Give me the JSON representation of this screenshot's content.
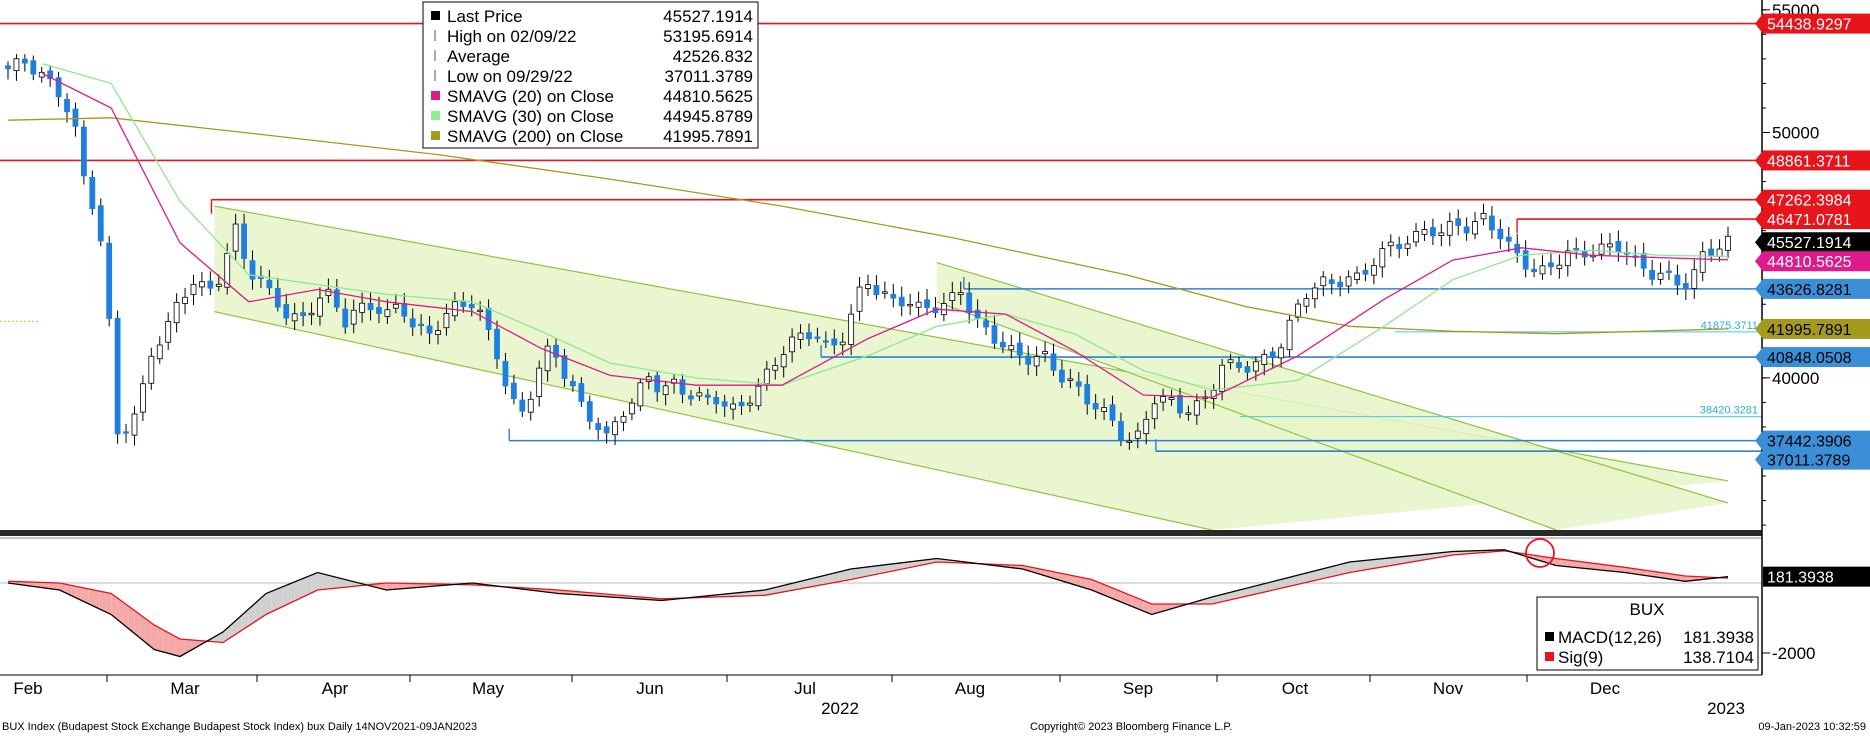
{
  "chart_data": {
    "type": "candlestick",
    "ticker_line": "BUX Index (Budapest Stock Exchange Budapest Stock Index) bux  Daily 14NOV2021-09JAN2023",
    "copyright": "Copyright© 2023 Bloomberg Finance L.P.",
    "timestamp": "09-Jan-2023 10:32:59",
    "x_months": [
      "Feb",
      "Mar",
      "Apr",
      "May",
      "Jun",
      "Jul",
      "Aug",
      "Sep",
      "Oct",
      "Nov",
      "Dec"
    ],
    "x_years": [
      "2022",
      "2023"
    ],
    "price_axis": {
      "ticks": [
        "55000",
        "50000",
        "40000"
      ],
      "range": [
        33800,
        55400
      ]
    },
    "macd_axis": {
      "ticks": [
        "-2000"
      ]
    },
    "legend": [
      {
        "label": "Last Price",
        "value": "45527.1914",
        "marker": "square",
        "color": "#000000"
      },
      {
        "label": "High on 02/09/22",
        "value": "53195.6914",
        "marker": "high",
        "color": "#555555"
      },
      {
        "label": "Average",
        "value": "42526.832",
        "marker": "avg",
        "color": "#555555"
      },
      {
        "label": "Low on 09/29/22",
        "value": "37011.3789",
        "marker": "low",
        "color": "#555555"
      },
      {
        "label": "SMAVG (20)  on Close",
        "value": "44810.5625",
        "marker": "square",
        "color": "#e0198c"
      },
      {
        "label": "SMAVG (30)  on Close",
        "value": "44945.8789",
        "marker": "square",
        "color": "#90ee90"
      },
      {
        "label": "SMAVG (200)  on Close",
        "value": "41995.7891",
        "marker": "square",
        "color": "#a59a1e"
      }
    ],
    "price_tags": [
      {
        "value": 54438.9297,
        "text": "54438.9297",
        "bg": "#e8141c",
        "fg": "#ffffff"
      },
      {
        "value": 48861.3711,
        "text": "48861.3711",
        "bg": "#e8141c",
        "fg": "#ffffff"
      },
      {
        "value": 47262.3984,
        "text": "47262.3984",
        "bg": "#e8141c",
        "fg": "#ffffff"
      },
      {
        "value": 46471.0781,
        "text": "46471.0781",
        "bg": "#e8141c",
        "fg": "#ffffff"
      },
      {
        "value": 45527.1914,
        "text": "45527.1914",
        "bg": "#000000",
        "fg": "#ffffff"
      },
      {
        "value": 44810.5625,
        "text": "44810.5625",
        "bg": "#e0198c",
        "fg": "#ffffff"
      },
      {
        "value": 43626.8281,
        "text": "43626.8281",
        "bg": "#3b8fd9",
        "fg": "#000000"
      },
      {
        "value": 41995.7891,
        "text": "41995.7891",
        "bg": "#a59a1e",
        "fg": "#000000"
      },
      {
        "value": 40848.0508,
        "text": "40848.0508",
        "bg": "#3b8fd9",
        "fg": "#000000"
      },
      {
        "value": 37442.3906,
        "text": "37442.3906",
        "bg": "#3b8fd9",
        "fg": "#000000"
      },
      {
        "value": 37011.3789,
        "text": "37011.3789",
        "bg": "#3b8fd9",
        "fg": "#000000"
      }
    ],
    "fib_labels": [
      {
        "value": 41875.3711,
        "text": "41875.3711"
      },
      {
        "value": 38420.3281,
        "text": "38420.3281"
      }
    ],
    "resistance_lines": [
      {
        "value": 54438.9297,
        "x_start": 0
      },
      {
        "value": 48861.3711,
        "x_start": 0
      },
      {
        "value": 47262.3984,
        "x_start": 0.12
      },
      {
        "value": 46471.0781,
        "x_start": 0.861
      }
    ],
    "support_lines": [
      {
        "value": 43626.8281,
        "x_start": 0.547
      },
      {
        "value": 40848.0508,
        "x_start": 0.466
      },
      {
        "value": 37442.3906,
        "x_start": 0.289
      },
      {
        "value": 37011.3789,
        "x_start": 0.656
      }
    ],
    "macd_legend": {
      "title": "BUX",
      "rows": [
        {
          "label": "MACD(12,26)",
          "value": "181.3938",
          "color": "#000000"
        },
        {
          "label": "Sig(9)",
          "value": "138.7104",
          "color": "#e8141c"
        }
      ],
      "last_tag": "181.3938"
    },
    "series_close": [
      {
        "t": 0.0,
        "v": 52600
      },
      {
        "t": 0.01,
        "v": 52900
      },
      {
        "t": 0.02,
        "v": 52300
      },
      {
        "t": 0.03,
        "v": 51600
      },
      {
        "t": 0.038,
        "v": 50500
      },
      {
        "t": 0.046,
        "v": 47400
      },
      {
        "t": 0.052,
        "v": 46900
      },
      {
        "t": 0.058,
        "v": 42900
      },
      {
        "t": 0.064,
        "v": 37500
      },
      {
        "t": 0.07,
        "v": 38200
      },
      {
        "t": 0.076,
        "v": 38600
      },
      {
        "t": 0.082,
        "v": 40900
      },
      {
        "t": 0.088,
        "v": 41500
      },
      {
        "t": 0.094,
        "v": 42200
      },
      {
        "t": 0.1,
        "v": 43300
      },
      {
        "t": 0.108,
        "v": 43900
      },
      {
        "t": 0.116,
        "v": 43500
      },
      {
        "t": 0.124,
        "v": 44200
      },
      {
        "t": 0.132,
        "v": 46100
      },
      {
        "t": 0.14,
        "v": 44400
      },
      {
        "t": 0.148,
        "v": 43800
      },
      {
        "t": 0.156,
        "v": 43200
      },
      {
        "t": 0.164,
        "v": 42300
      },
      {
        "t": 0.172,
        "v": 42500
      },
      {
        "t": 0.18,
        "v": 43200
      },
      {
        "t": 0.188,
        "v": 43400
      },
      {
        "t": 0.196,
        "v": 42300
      },
      {
        "t": 0.204,
        "v": 42800
      },
      {
        "t": 0.212,
        "v": 43000
      },
      {
        "t": 0.22,
        "v": 42500
      },
      {
        "t": 0.228,
        "v": 43100
      },
      {
        "t": 0.236,
        "v": 42000
      },
      {
        "t": 0.244,
        "v": 41800
      },
      {
        "t": 0.252,
        "v": 42300
      },
      {
        "t": 0.26,
        "v": 42900
      },
      {
        "t": 0.268,
        "v": 43200
      },
      {
        "t": 0.276,
        "v": 42400
      },
      {
        "t": 0.284,
        "v": 41100
      },
      {
        "t": 0.292,
        "v": 39000
      },
      {
        "t": 0.3,
        "v": 38600
      },
      {
        "t": 0.308,
        "v": 40200
      },
      {
        "t": 0.316,
        "v": 41400
      },
      {
        "t": 0.324,
        "v": 40100
      },
      {
        "t": 0.332,
        "v": 39000
      },
      {
        "t": 0.34,
        "v": 38300
      },
      {
        "t": 0.348,
        "v": 37500
      },
      {
        "t": 0.356,
        "v": 38600
      },
      {
        "t": 0.364,
        "v": 39000
      },
      {
        "t": 0.372,
        "v": 40200
      },
      {
        "t": 0.38,
        "v": 39400
      },
      {
        "t": 0.388,
        "v": 39800
      },
      {
        "t": 0.396,
        "v": 39300
      },
      {
        "t": 0.404,
        "v": 39100
      },
      {
        "t": 0.412,
        "v": 39200
      },
      {
        "t": 0.42,
        "v": 38600
      },
      {
        "t": 0.428,
        "v": 39000
      },
      {
        "t": 0.436,
        "v": 39500
      },
      {
        "t": 0.444,
        "v": 40500
      },
      {
        "t": 0.452,
        "v": 41200
      },
      {
        "t": 0.46,
        "v": 41700
      },
      {
        "t": 0.468,
        "v": 41900
      },
      {
        "t": 0.476,
        "v": 41200
      },
      {
        "t": 0.484,
        "v": 41500
      },
      {
        "t": 0.492,
        "v": 42800
      },
      {
        "t": 0.498,
        "v": 44100
      },
      {
        "t": 0.506,
        "v": 43500
      },
      {
        "t": 0.514,
        "v": 43100
      },
      {
        "t": 0.522,
        "v": 43200
      },
      {
        "t": 0.53,
        "v": 42800
      },
      {
        "t": 0.538,
        "v": 42900
      },
      {
        "t": 0.546,
        "v": 43000
      },
      {
        "t": 0.554,
        "v": 43600
      },
      {
        "t": 0.562,
        "v": 42400
      },
      {
        "t": 0.57,
        "v": 41800
      },
      {
        "t": 0.578,
        "v": 41400
      },
      {
        "t": 0.586,
        "v": 40900
      },
      {
        "t": 0.594,
        "v": 40800
      },
      {
        "t": 0.602,
        "v": 40900
      },
      {
        "t": 0.61,
        "v": 40200
      },
      {
        "t": 0.618,
        "v": 39800
      },
      {
        "t": 0.626,
        "v": 39200
      },
      {
        "t": 0.634,
        "v": 38800
      },
      {
        "t": 0.642,
        "v": 38200
      },
      {
        "t": 0.65,
        "v": 37400
      },
      {
        "t": 0.658,
        "v": 37600
      },
      {
        "t": 0.666,
        "v": 39200
      },
      {
        "t": 0.674,
        "v": 39100
      },
      {
        "t": 0.682,
        "v": 38700
      },
      {
        "t": 0.69,
        "v": 38800
      },
      {
        "t": 0.698,
        "v": 39200
      },
      {
        "t": 0.706,
        "v": 40600
      },
      {
        "t": 0.714,
        "v": 40400
      },
      {
        "t": 0.722,
        "v": 40500
      },
      {
        "t": 0.73,
        "v": 40700
      },
      {
        "t": 0.738,
        "v": 41100
      },
      {
        "t": 0.746,
        "v": 42300
      },
      {
        "t": 0.754,
        "v": 43400
      },
      {
        "t": 0.762,
        "v": 43900
      },
      {
        "t": 0.77,
        "v": 43800
      },
      {
        "t": 0.778,
        "v": 44100
      },
      {
        "t": 0.786,
        "v": 44000
      },
      {
        "t": 0.794,
        "v": 44800
      },
      {
        "t": 0.802,
        "v": 45300
      },
      {
        "t": 0.81,
        "v": 45500
      },
      {
        "t": 0.818,
        "v": 45700
      },
      {
        "t": 0.826,
        "v": 46100
      },
      {
        "t": 0.834,
        "v": 45900
      },
      {
        "t": 0.842,
        "v": 46300
      },
      {
        "t": 0.85,
        "v": 46100
      },
      {
        "t": 0.858,
        "v": 46500
      },
      {
        "t": 0.866,
        "v": 46000
      },
      {
        "t": 0.874,
        "v": 45200
      },
      {
        "t": 0.882,
        "v": 44700
      },
      {
        "t": 0.89,
        "v": 44200
      },
      {
        "t": 0.898,
        "v": 44600
      },
      {
        "t": 0.906,
        "v": 45100
      },
      {
        "t": 0.914,
        "v": 45000
      },
      {
        "t": 0.922,
        "v": 45200
      },
      {
        "t": 0.93,
        "v": 45300
      },
      {
        "t": 0.938,
        "v": 45400
      },
      {
        "t": 0.946,
        "v": 44700
      },
      {
        "t": 0.954,
        "v": 44300
      },
      {
        "t": 0.962,
        "v": 44200
      },
      {
        "t": 0.97,
        "v": 43900
      },
      {
        "t": 0.978,
        "v": 43800
      },
      {
        "t": 0.984,
        "v": 44900
      },
      {
        "t": 0.99,
        "v": 45200
      },
      {
        "t": 0.996,
        "v": 45400
      },
      {
        "t": 1.0,
        "v": 45527
      }
    ],
    "sma20": [
      {
        "t": 0.02,
        "v": 52400
      },
      {
        "t": 0.06,
        "v": 51000
      },
      {
        "t": 0.1,
        "v": 45500
      },
      {
        "t": 0.14,
        "v": 43100
      },
      {
        "t": 0.18,
        "v": 43600
      },
      {
        "t": 0.22,
        "v": 43100
      },
      {
        "t": 0.27,
        "v": 42700
      },
      {
        "t": 0.31,
        "v": 41200
      },
      {
        "t": 0.35,
        "v": 40100
      },
      {
        "t": 0.4,
        "v": 39700
      },
      {
        "t": 0.45,
        "v": 39700
      },
      {
        "t": 0.5,
        "v": 41600
      },
      {
        "t": 0.54,
        "v": 42800
      },
      {
        "t": 0.58,
        "v": 42600
      },
      {
        "t": 0.62,
        "v": 41100
      },
      {
        "t": 0.66,
        "v": 39300
      },
      {
        "t": 0.7,
        "v": 39200
      },
      {
        "t": 0.75,
        "v": 40900
      },
      {
        "t": 0.8,
        "v": 43200
      },
      {
        "t": 0.84,
        "v": 44800
      },
      {
        "t": 0.88,
        "v": 45300
      },
      {
        "t": 0.92,
        "v": 45000
      },
      {
        "t": 0.96,
        "v": 44900
      },
      {
        "t": 1.0,
        "v": 44810
      }
    ],
    "sma30": [
      {
        "t": 0.02,
        "v": 52800
      },
      {
        "t": 0.06,
        "v": 52000
      },
      {
        "t": 0.1,
        "v": 47200
      },
      {
        "t": 0.14,
        "v": 44200
      },
      {
        "t": 0.18,
        "v": 43800
      },
      {
        "t": 0.22,
        "v": 43400
      },
      {
        "t": 0.27,
        "v": 43100
      },
      {
        "t": 0.31,
        "v": 41900
      },
      {
        "t": 0.35,
        "v": 40600
      },
      {
        "t": 0.4,
        "v": 40000
      },
      {
        "t": 0.45,
        "v": 39700
      },
      {
        "t": 0.5,
        "v": 40900
      },
      {
        "t": 0.54,
        "v": 42100
      },
      {
        "t": 0.58,
        "v": 42600
      },
      {
        "t": 0.62,
        "v": 41800
      },
      {
        "t": 0.66,
        "v": 40300
      },
      {
        "t": 0.7,
        "v": 39500
      },
      {
        "t": 0.75,
        "v": 39900
      },
      {
        "t": 0.8,
        "v": 42100
      },
      {
        "t": 0.84,
        "v": 44000
      },
      {
        "t": 0.88,
        "v": 45000
      },
      {
        "t": 0.92,
        "v": 45200
      },
      {
        "t": 0.96,
        "v": 45000
      },
      {
        "t": 1.0,
        "v": 44945
      }
    ],
    "sma200": [
      {
        "t": 0.0,
        "v": 50500
      },
      {
        "t": 0.06,
        "v": 50600
      },
      {
        "t": 0.15,
        "v": 49900
      },
      {
        "t": 0.25,
        "v": 49100
      },
      {
        "t": 0.35,
        "v": 48100
      },
      {
        "t": 0.45,
        "v": 47000
      },
      {
        "t": 0.55,
        "v": 45700
      },
      {
        "t": 0.65,
        "v": 44200
      },
      {
        "t": 0.72,
        "v": 42900
      },
      {
        "t": 0.78,
        "v": 42100
      },
      {
        "t": 0.84,
        "v": 41900
      },
      {
        "t": 0.9,
        "v": 41800
      },
      {
        "t": 0.95,
        "v": 41900
      },
      {
        "t": 1.0,
        "v": 41996
      }
    ],
    "channels": [
      {
        "top": [
          [
            0.12,
            47000
          ],
          [
            1.0,
            35800
          ]
        ],
        "bottom": [
          [
            0.12,
            42700
          ],
          [
            0.7,
            33800
          ]
        ]
      },
      {
        "top": [
          [
            0.54,
            44700
          ],
          [
            1.0,
            34900
          ]
        ],
        "bottom": [
          [
            0.54,
            43100
          ],
          [
            0.9,
            33800
          ]
        ]
      }
    ],
    "macd": [
      {
        "t": 0.0,
        "v": 0
      },
      {
        "t": 0.03,
        "v": -200
      },
      {
        "t": 0.06,
        "v": -900
      },
      {
        "t": 0.085,
        "v": -1900
      },
      {
        "t": 0.1,
        "v": -2100
      },
      {
        "t": 0.125,
        "v": -1400
      },
      {
        "t": 0.15,
        "v": -300
      },
      {
        "t": 0.18,
        "v": 300
      },
      {
        "t": 0.22,
        "v": -200
      },
      {
        "t": 0.27,
        "v": 0
      },
      {
        "t": 0.32,
        "v": -300
      },
      {
        "t": 0.38,
        "v": -500
      },
      {
        "t": 0.44,
        "v": -200
      },
      {
        "t": 0.49,
        "v": 400
      },
      {
        "t": 0.54,
        "v": 700
      },
      {
        "t": 0.59,
        "v": 400
      },
      {
        "t": 0.63,
        "v": -200
      },
      {
        "t": 0.665,
        "v": -900
      },
      {
        "t": 0.7,
        "v": -400
      },
      {
        "t": 0.74,
        "v": 100
      },
      {
        "t": 0.78,
        "v": 600
      },
      {
        "t": 0.84,
        "v": 900
      },
      {
        "t": 0.87,
        "v": 950
      },
      {
        "t": 0.9,
        "v": 500
      },
      {
        "t": 0.94,
        "v": 300
      },
      {
        "t": 0.975,
        "v": 50
      },
      {
        "t": 1.0,
        "v": 181
      }
    ],
    "signal": [
      {
        "t": 0.0,
        "v": 50
      },
      {
        "t": 0.03,
        "v": 0
      },
      {
        "t": 0.06,
        "v": -300
      },
      {
        "t": 0.085,
        "v": -1200
      },
      {
        "t": 0.1,
        "v": -1600
      },
      {
        "t": 0.125,
        "v": -1700
      },
      {
        "t": 0.15,
        "v": -900
      },
      {
        "t": 0.18,
        "v": -200
      },
      {
        "t": 0.22,
        "v": 0
      },
      {
        "t": 0.27,
        "v": -50
      },
      {
        "t": 0.32,
        "v": -200
      },
      {
        "t": 0.38,
        "v": -450
      },
      {
        "t": 0.44,
        "v": -350
      },
      {
        "t": 0.49,
        "v": 100
      },
      {
        "t": 0.54,
        "v": 600
      },
      {
        "t": 0.59,
        "v": 500
      },
      {
        "t": 0.63,
        "v": 100
      },
      {
        "t": 0.665,
        "v": -600
      },
      {
        "t": 0.7,
        "v": -600
      },
      {
        "t": 0.74,
        "v": -150
      },
      {
        "t": 0.78,
        "v": 300
      },
      {
        "t": 0.84,
        "v": 800
      },
      {
        "t": 0.87,
        "v": 920
      },
      {
        "t": 0.9,
        "v": 700
      },
      {
        "t": 0.94,
        "v": 450
      },
      {
        "t": 0.975,
        "v": 200
      },
      {
        "t": 1.0,
        "v": 139
      }
    ]
  }
}
